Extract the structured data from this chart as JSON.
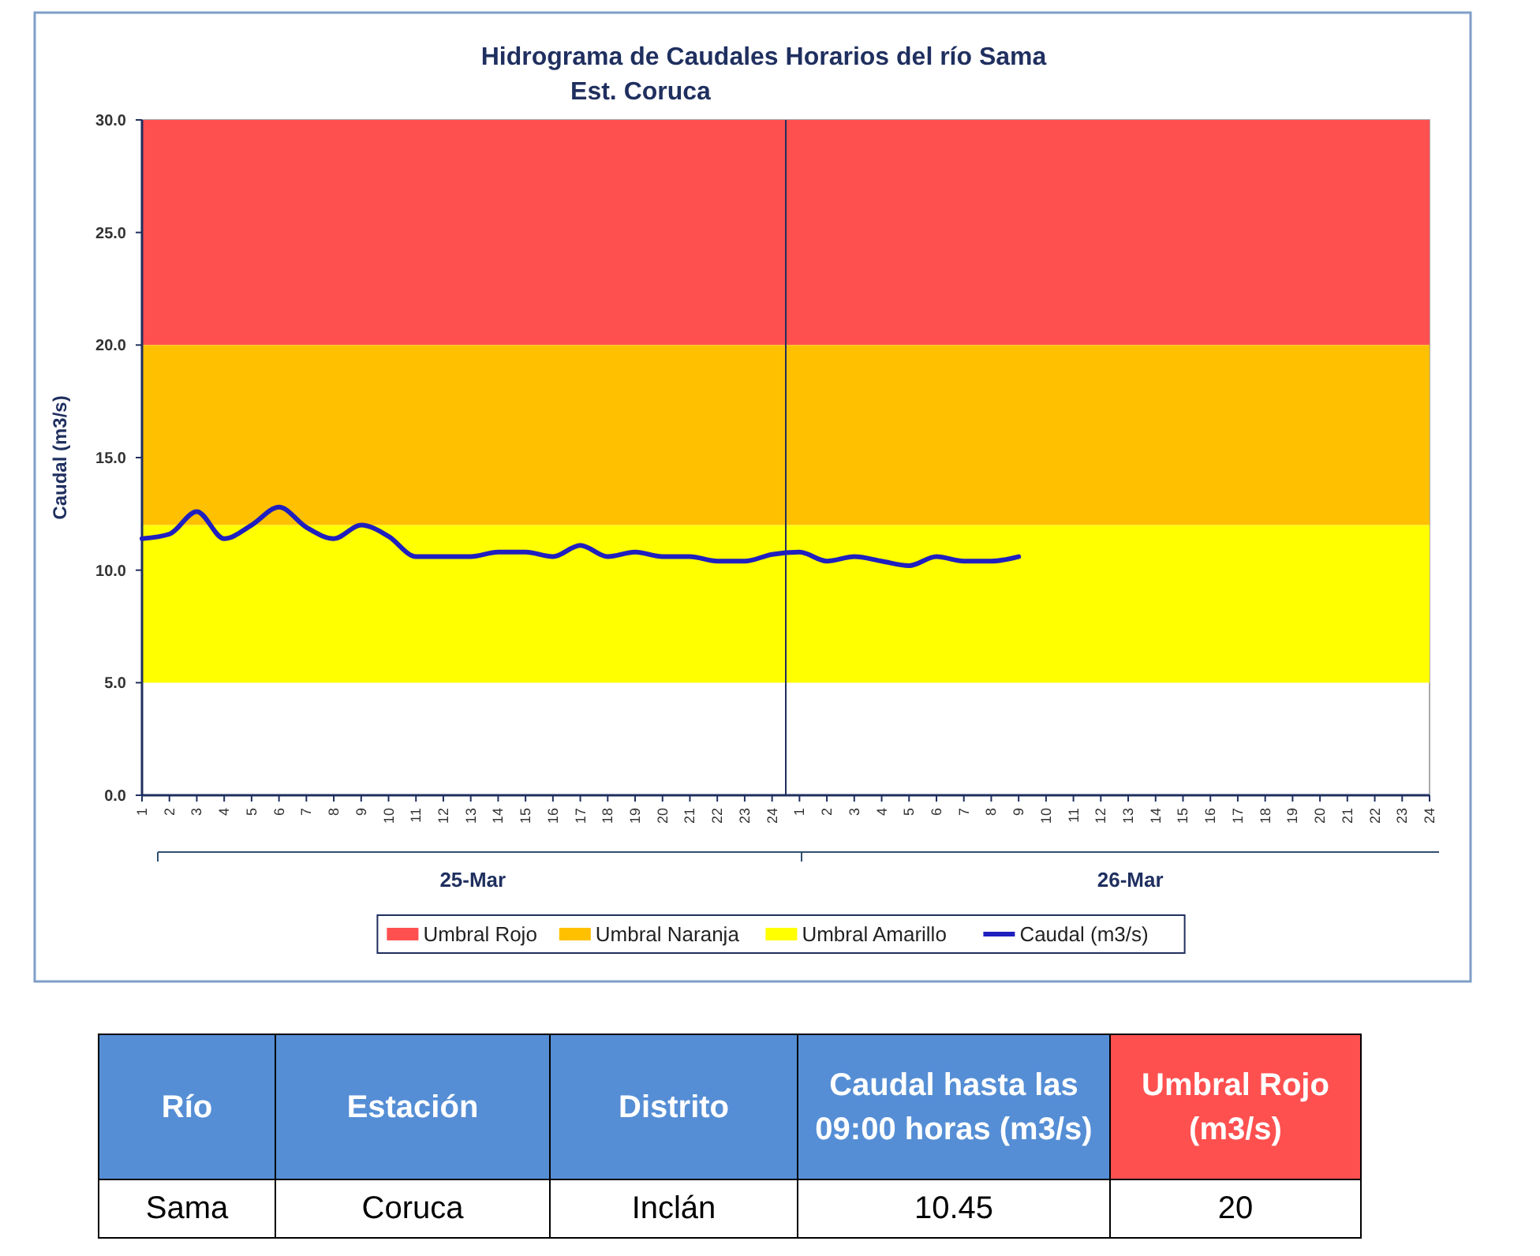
{
  "chart_data": [
    {
      "type": "line",
      "title": "Hidrograma de Caudales Horarios del río Sama",
      "subtitle": "Est. Coruca",
      "ylabel": "Caudal (m3/s)",
      "categories": [
        "1",
        "2",
        "3",
        "4",
        "5",
        "6",
        "7",
        "8",
        "9",
        "10",
        "11",
        "12",
        "13",
        "14",
        "15",
        "16",
        "17",
        "18",
        "19",
        "20",
        "21",
        "22",
        "23",
        "24",
        "1",
        "2",
        "3",
        "4",
        "5",
        "6",
        "7",
        "8",
        "9",
        "10",
        "11",
        "12",
        "13",
        "14",
        "15",
        "16",
        "17",
        "18",
        "19",
        "20",
        "21",
        "22",
        "23",
        "24"
      ],
      "series": [
        {
          "name": "Caudal (m3/s)",
          "color": "#1f1fbf",
          "values": [
            11.4,
            11.6,
            12.6,
            11.4,
            12.0,
            12.8,
            11.9,
            11.4,
            12.0,
            11.5,
            10.6,
            10.6,
            10.6,
            10.8,
            10.8,
            10.6,
            11.1,
            10.6,
            10.8,
            10.6,
            10.6,
            10.4,
            10.4,
            10.7,
            10.8,
            10.4,
            10.6,
            10.4,
            10.2,
            10.6,
            10.4,
            10.4,
            10.6,
            null,
            null,
            null,
            null,
            null,
            null,
            null,
            null,
            null,
            null,
            null,
            null,
            null,
            null,
            null
          ]
        }
      ],
      "bands": [
        {
          "axis": "y",
          "from": 20,
          "to": 30,
          "label": "Umbral Rojo",
          "color": "#ff5050"
        },
        {
          "axis": "y",
          "from": 12,
          "to": 20,
          "label": "Umbral Naranja",
          "color": "#ffc000"
        },
        {
          "axis": "y",
          "from": 5,
          "to": 12,
          "label": "Umbral Amarillo",
          "color": "#ffff00"
        }
      ],
      "ref_lines": [
        {
          "axis": "x",
          "value": "24",
          "color": "#1f2f5f"
        }
      ],
      "annotations": [
        "25-Mar",
        "26-Mar"
      ],
      "ylim": [
        0,
        30
      ],
      "yticks": [
        {
          "value": 0,
          "label": "0.0"
        },
        {
          "value": 5,
          "label": "5.0"
        },
        {
          "value": 10,
          "label": "10.0"
        },
        {
          "value": 15,
          "label": "15.0"
        },
        {
          "value": 20,
          "label": "20.0"
        },
        {
          "value": 25,
          "label": "25.0"
        },
        {
          "value": 30,
          "label": "30.0"
        }
      ],
      "legend": "bottom",
      "marker": "none",
      "line_style": "solid"
    },
    {
      "type": "other",
      "categories": [
        "Río",
        "Estación",
        "Distrito",
        "Caudal hasta las 09:00 horas (m3/s)",
        "Umbral  Rojo (m3/s)"
      ],
      "colors": [
        "#558ed5",
        "#558ed5",
        "#558ed5",
        "#558ed5",
        "#ff5050"
      ],
      "cell_labels": [
        [
          "Sama",
          "Coruca",
          "Inclán",
          "10.45",
          "20"
        ]
      ]
    }
  ]
}
